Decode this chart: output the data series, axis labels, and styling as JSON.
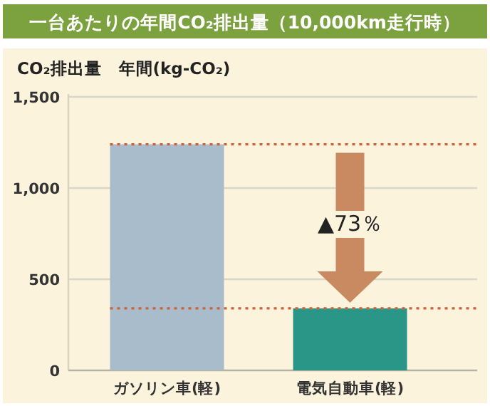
{
  "chart_data": {
    "type": "bar",
    "title": "一台あたりの年間CO₂排出量（10,000km走行時）",
    "ylabel": "CO₂排出量　年間(kg-CO₂)",
    "categories": [
      "ガソリン車(軽)",
      "電気自動車(軽)"
    ],
    "values": [
      1240,
      340
    ],
    "colors": [
      "#a9bccb",
      "#2a9688"
    ],
    "ylim": [
      0,
      1500
    ],
    "yticks": [
      0,
      500,
      {
        "value": 1000,
        "label": "1,000"
      },
      {
        "value": 1500,
        "label": "1,500"
      }
    ],
    "grid": "y",
    "ref_lines": [
      {
        "axis": "y",
        "value": 1240,
        "color": "#d0603a",
        "line_style": "dotted"
      },
      {
        "axis": "y",
        "value": 340,
        "color": "#d0603a",
        "line_style": "dotted"
      }
    ],
    "annotations": [
      "▲73％"
    ]
  }
}
